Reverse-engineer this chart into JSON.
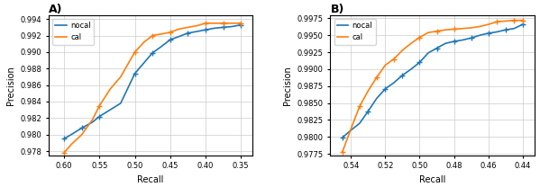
{
  "panel_A": {
    "title": "A)",
    "nocal_recall_pts": [
      0.6,
      0.59,
      0.575,
      0.56,
      0.55,
      0.535,
      0.52,
      0.51,
      0.5,
      0.487,
      0.475,
      0.462,
      0.45,
      0.437,
      0.425,
      0.412,
      0.4,
      0.387,
      0.375,
      0.362,
      0.35
    ],
    "nocal_precision_pts": [
      0.9795,
      0.98,
      0.9808,
      0.9815,
      0.9822,
      0.983,
      0.9838,
      0.9856,
      0.9874,
      0.9887,
      0.9899,
      0.9907,
      0.9915,
      0.9919,
      0.9923,
      0.9925,
      0.9927,
      0.9929,
      0.993,
      0.9931,
      0.9933
    ],
    "cal_recall_pts": [
      0.6,
      0.59,
      0.575,
      0.56,
      0.55,
      0.535,
      0.52,
      0.51,
      0.5,
      0.487,
      0.475,
      0.462,
      0.45,
      0.437,
      0.425,
      0.412,
      0.4,
      0.387,
      0.375,
      0.362,
      0.35
    ],
    "cal_precision_pts": [
      0.9778,
      0.9788,
      0.98,
      0.9818,
      0.9835,
      0.9855,
      0.987,
      0.9885,
      0.99,
      0.9912,
      0.992,
      0.9922,
      0.9924,
      0.9928,
      0.993,
      0.9932,
      0.9935,
      0.9935,
      0.9935,
      0.9935,
      0.9935
    ],
    "marker_nocal_recall": [
      0.6,
      0.575,
      0.55,
      0.5,
      0.475,
      0.45,
      0.425,
      0.4,
      0.375,
      0.35
    ],
    "marker_nocal_prec": [
      0.9795,
      0.9808,
      0.9822,
      0.9874,
      0.9899,
      0.9915,
      0.9923,
      0.9927,
      0.993,
      0.9933
    ],
    "marker_cal_recall": [
      0.6,
      0.55,
      0.5,
      0.475,
      0.45,
      0.4,
      0.375,
      0.35
    ],
    "marker_cal_prec": [
      0.9778,
      0.9835,
      0.99,
      0.992,
      0.9924,
      0.9935,
      0.9935,
      0.9935
    ],
    "xlim": [
      0.622,
      0.333
    ],
    "ylim": [
      0.9775,
      0.9945
    ],
    "xticks": [
      0.6,
      0.55,
      0.5,
      0.45,
      0.4,
      0.35
    ],
    "yticks": [
      0.978,
      0.98,
      0.982,
      0.984,
      0.986,
      0.988,
      0.99,
      0.992,
      0.994
    ],
    "xlabel": "Recall",
    "ylabel": "Precision"
  },
  "panel_B": {
    "title": "B)",
    "nocal_recall_pts": [
      0.545,
      0.54,
      0.535,
      0.53,
      0.525,
      0.52,
      0.515,
      0.51,
      0.505,
      0.5,
      0.495,
      0.49,
      0.485,
      0.48,
      0.475,
      0.47,
      0.465,
      0.46,
      0.455,
      0.45,
      0.445,
      0.44
    ],
    "nocal_precision_pts": [
      0.9799,
      0.981,
      0.982,
      0.9838,
      0.9857,
      0.9871,
      0.988,
      0.9891,
      0.99,
      0.991,
      0.9924,
      0.9931,
      0.9938,
      0.9941,
      0.9943,
      0.9946,
      0.995,
      0.9953,
      0.9955,
      0.9958,
      0.996,
      0.9966
    ],
    "cal_recall_pts": [
      0.545,
      0.54,
      0.535,
      0.53,
      0.525,
      0.52,
      0.515,
      0.51,
      0.505,
      0.5,
      0.495,
      0.49,
      0.485,
      0.48,
      0.475,
      0.47,
      0.465,
      0.46,
      0.455,
      0.45,
      0.445,
      0.44
    ],
    "cal_precision_pts": [
      0.9778,
      0.9812,
      0.9845,
      0.9868,
      0.9888,
      0.9906,
      0.9915,
      0.9928,
      0.9938,
      0.9947,
      0.9954,
      0.9956,
      0.9958,
      0.9959,
      0.996,
      0.9961,
      0.9963,
      0.9966,
      0.997,
      0.9971,
      0.9972,
      0.9972
    ],
    "marker_nocal_recall": [
      0.545,
      0.53,
      0.52,
      0.51,
      0.5,
      0.49,
      0.48,
      0.47,
      0.46,
      0.45,
      0.44
    ],
    "marker_nocal_prec": [
      0.9799,
      0.9838,
      0.9871,
      0.9891,
      0.991,
      0.9931,
      0.9941,
      0.9946,
      0.9953,
      0.9958,
      0.9966
    ],
    "marker_cal_recall": [
      0.545,
      0.535,
      0.525,
      0.515,
      0.5,
      0.49,
      0.48,
      0.455,
      0.445,
      0.44
    ],
    "marker_cal_prec": [
      0.9778,
      0.9845,
      0.9888,
      0.9915,
      0.9947,
      0.9956,
      0.9959,
      0.997,
      0.9972,
      0.9972
    ],
    "xlim": [
      0.552,
      0.433
    ],
    "ylim": [
      0.9773,
      0.998
    ],
    "xticks": [
      0.54,
      0.52,
      0.5,
      0.48,
      0.46,
      0.44
    ],
    "yticks": [
      0.9775,
      0.98,
      0.9825,
      0.985,
      0.9875,
      0.99,
      0.9925,
      0.995,
      0.9975
    ],
    "xlabel": "Recall",
    "ylabel": "Precision"
  },
  "nocal_color": "#1f77b4",
  "cal_color": "#ff7f0e",
  "marker": "+",
  "markersize": 4,
  "linewidth": 1.2,
  "fontsize": 7,
  "title_fontsize": 9
}
